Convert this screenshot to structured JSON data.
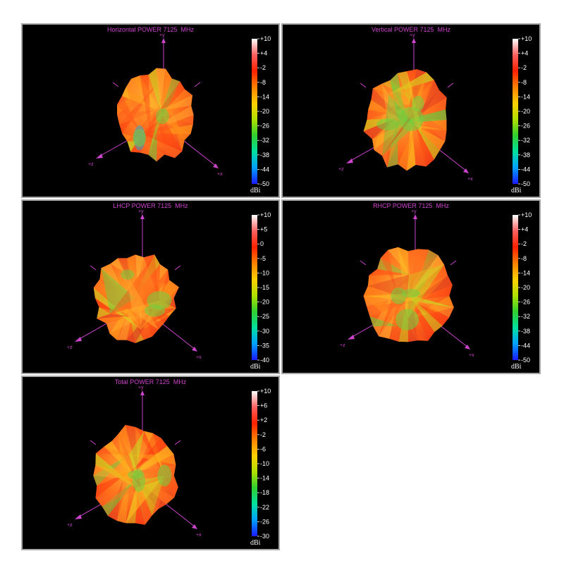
{
  "colors": {
    "axis": "#cc44cc",
    "background": "#000000",
    "frame": "#a8a8a8",
    "tick_text": "#ffffff",
    "colormap": [
      "#1a1aff",
      "#00a0ff",
      "#00e0a0",
      "#30d030",
      "#b0e000",
      "#ffd000",
      "#ff8000",
      "#ff2000",
      "#ff6060",
      "#ffffff"
    ]
  },
  "axis_labels": {
    "x": "+x",
    "y": "+y",
    "z": "+z"
  },
  "chart_data": [
    {
      "type": "heatmap",
      "subtype": "3D radiation pattern",
      "title": "Horizontal POWER 7125  MHz",
      "colorbar": {
        "unit": "dBi",
        "ticks": [
          "+10",
          "+4",
          "-2",
          "-8",
          "-14",
          "-20",
          "-26",
          "-32",
          "-38",
          "-44",
          "-50"
        ],
        "range": [
          -50,
          10
        ]
      }
    },
    {
      "type": "heatmap",
      "subtype": "3D radiation pattern",
      "title": "Vertical POWER 7125  MHz",
      "colorbar": {
        "unit": "dBi",
        "ticks": [
          "+10",
          "+4",
          "-2",
          "-8",
          "-14",
          "-20",
          "-26",
          "-32",
          "-38",
          "-44",
          "-50"
        ],
        "range": [
          -50,
          10
        ]
      }
    },
    {
      "type": "heatmap",
      "subtype": "3D radiation pattern",
      "title": "LHCP POWER 7125  MHz",
      "colorbar": {
        "unit": "dBi",
        "ticks": [
          "+10",
          "+5",
          "0",
          "-5",
          "-10",
          "-15",
          "-20",
          "-25",
          "-30",
          "-35",
          "-40"
        ],
        "range": [
          -40,
          10
        ]
      }
    },
    {
      "type": "heatmap",
      "subtype": "3D radiation pattern",
      "title": "RHCP POWER 7125  MHz",
      "colorbar": {
        "unit": "dBi",
        "ticks": [
          "+10",
          "+4",
          "-2",
          "-8",
          "-14",
          "-20",
          "-26",
          "-32",
          "-38",
          "-44",
          "-50"
        ],
        "range": [
          -50,
          10
        ]
      }
    },
    {
      "type": "heatmap",
      "subtype": "3D radiation pattern",
      "title": "Total POWER 7125  MHz",
      "colorbar": {
        "unit": "dBi",
        "ticks": [
          "+10",
          "+6",
          "+2",
          "-2",
          "-6",
          "-10",
          "-14",
          "-18",
          "-22",
          "-26",
          "-30"
        ],
        "range": [
          -30,
          10
        ]
      }
    }
  ]
}
